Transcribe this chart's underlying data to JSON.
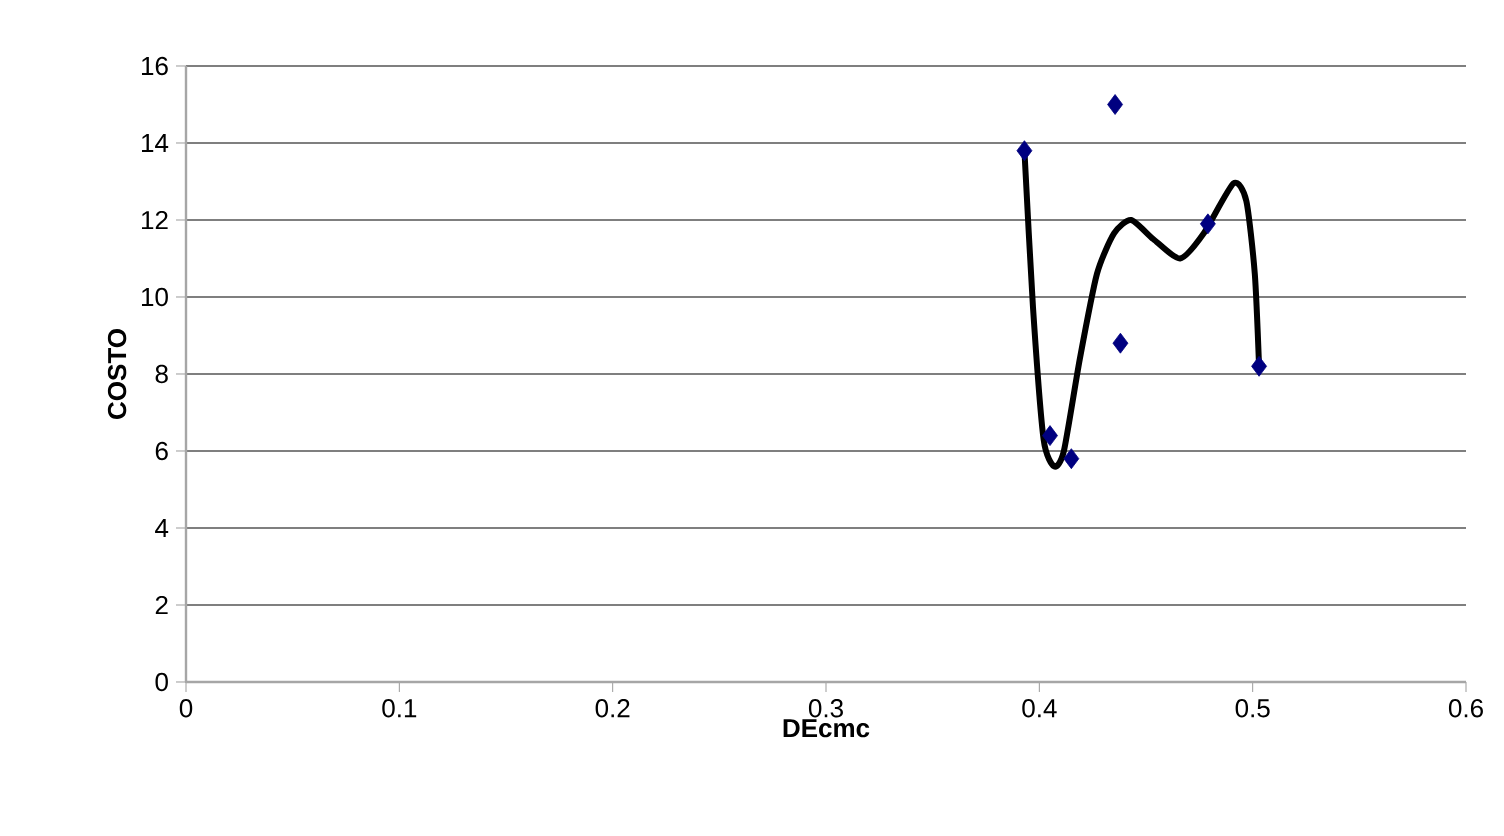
{
  "chart_data": {
    "type": "scatter",
    "xlabel": "DEcmc",
    "ylabel": "COSTO",
    "xlim": [
      0,
      0.6
    ],
    "ylim": [
      0,
      16
    ],
    "xticks": [
      0,
      0.1,
      0.2,
      0.3,
      0.4,
      0.5,
      0.6
    ],
    "yticks": [
      0,
      2,
      4,
      6,
      8,
      10,
      12,
      14,
      16
    ],
    "grid": "y",
    "series": [
      {
        "marker": "diamond",
        "color": "#000080",
        "x": [
          0.393,
          0.4355,
          0.405,
          0.415,
          0.438,
          0.479,
          0.503
        ],
        "values": [
          13.8,
          15.0,
          6.4,
          5.8,
          8.8,
          11.9,
          8.2
        ]
      },
      {
        "type": "line",
        "marker": "none",
        "line_style": "solid",
        "color": "#000000",
        "x": [
          0.393,
          0.397,
          0.402,
          0.407,
          0.4115,
          0.419,
          0.427,
          0.435,
          0.443,
          0.4535,
          0.466,
          0.477,
          0.491,
          0.497,
          0.501,
          0.503
        ],
        "values": [
          13.8,
          9.75,
          6.3,
          5.6,
          6.0,
          8.4,
          10.6,
          11.65,
          12.0,
          11.5,
          11.0,
          11.65,
          12.95,
          12.5,
          10.6,
          8.2
        ]
      }
    ]
  }
}
